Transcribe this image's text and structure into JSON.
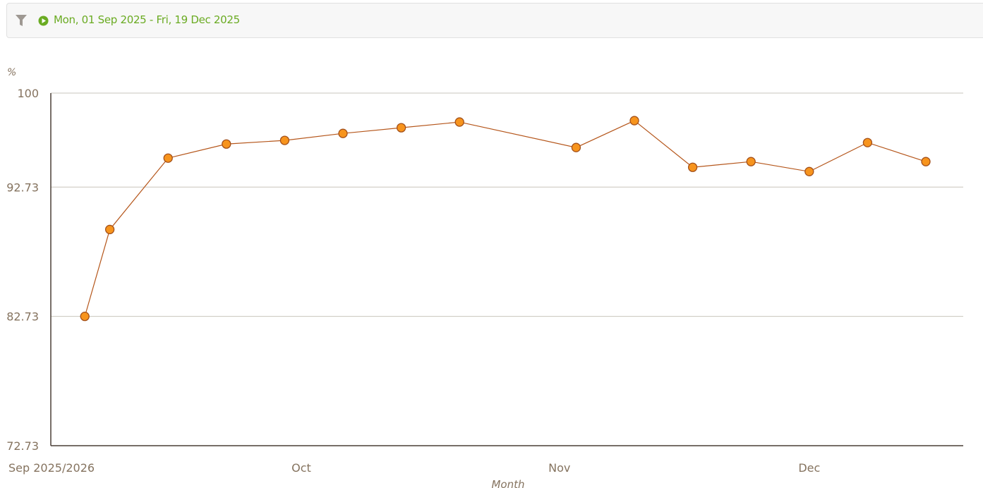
{
  "filter": {
    "icon": "filter-icon",
    "play_icon": "play-circle-icon",
    "date_range": "Mon, 01 Sep 2025 - Fri, 19 Dec 2025",
    "accent_color": "#6aab22"
  },
  "chart_data": {
    "type": "line",
    "title": "",
    "ylabel": "%",
    "xlabel": "Month",
    "ylim": [
      72.73,
      100
    ],
    "y_ticks": [
      "72.73",
      "82.73",
      "92.73",
      "100"
    ],
    "x_ticks": [
      {
        "date": "2025-09-01",
        "label": "Sep 2025/2026"
      },
      {
        "date": "2025-10-01",
        "label": "Oct"
      },
      {
        "date": "2025-11-01",
        "label": "Nov"
      },
      {
        "date": "2025-12-01",
        "label": "Dec"
      }
    ],
    "xlim": [
      "2025-09-01",
      "2025-12-19"
    ],
    "grid": true,
    "line_color": "#b5561b",
    "marker_color": "#f7941d",
    "points": [
      {
        "x": "2025-09-05",
        "y": 82.73
      },
      {
        "x": "2025-09-08",
        "y": 89.45
      },
      {
        "x": "2025-09-15",
        "y": 94.97
      },
      {
        "x": "2025-09-22",
        "y": 96.06
      },
      {
        "x": "2025-09-29",
        "y": 96.34
      },
      {
        "x": "2025-10-06",
        "y": 96.88
      },
      {
        "x": "2025-10-13",
        "y": 97.32
      },
      {
        "x": "2025-10-20",
        "y": 97.76
      },
      {
        "x": "2025-11-03",
        "y": 95.79
      },
      {
        "x": "2025-11-10",
        "y": 97.87
      },
      {
        "x": "2025-11-17",
        "y": 94.26
      },
      {
        "x": "2025-11-24",
        "y": 94.7
      },
      {
        "x": "2025-12-01",
        "y": 93.93
      },
      {
        "x": "2025-12-08",
        "y": 96.17
      },
      {
        "x": "2025-12-15",
        "y": 94.7
      }
    ]
  }
}
